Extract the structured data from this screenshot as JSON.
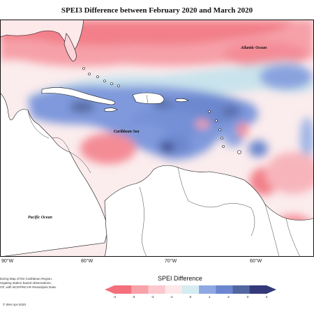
{
  "title": "SPEI3 Difference between February 2020 and March 2020",
  "map": {
    "labels": {
      "atlantic": "Atlantic Ocean",
      "caribbean": "Caribbean Sea",
      "pacific": "Pacific Ocean"
    },
    "lon_labels": [
      "90°W",
      "80°W",
      "70°W",
      "60°W"
    ]
  },
  "legend": {
    "title": "SPEI Difference",
    "ticks": [
      "-4",
      "-3",
      "-2",
      "-1",
      "0",
      "1",
      "2",
      "3",
      "4"
    ],
    "colors": [
      "#f36f7b",
      "#f7a1a9",
      "#fbc9cd",
      "#fde7e9",
      "#d5ecf1",
      "#8fa8e2",
      "#6b86cf",
      "#52669f",
      "#34397a"
    ]
  },
  "footer": {
    "lines": [
      "itoring Map of the Caribbean Region,",
      "regating station based observations,",
      "OF, with NCEP/NCAR Reanalysis Data."
    ],
    "credit": "© IMH Apr-2020"
  }
}
